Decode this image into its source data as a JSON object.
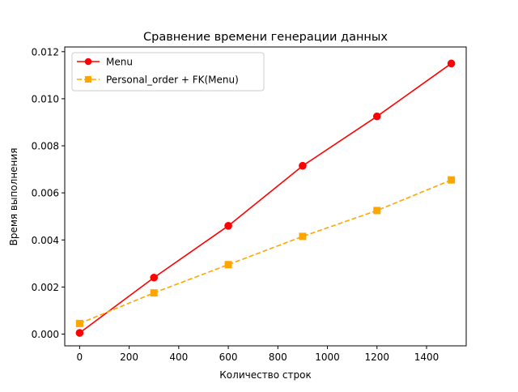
{
  "chart_data": {
    "type": "line",
    "title": "Сравнение времени генерации данных",
    "xlabel": "Количество строк",
    "ylabel": "Время выполнения",
    "xlim": [
      -60,
      1560
    ],
    "ylim": [
      -0.0005,
      0.0122
    ],
    "x_ticks": [
      0,
      200,
      400,
      600,
      800,
      1000,
      1200,
      1400
    ],
    "x_tick_labels": [
      "0",
      "200",
      "400",
      "600",
      "800",
      "1000",
      "1200",
      "1400"
    ],
    "y_ticks": [
      0.0,
      0.002,
      0.004,
      0.006,
      0.008,
      0.01,
      0.012
    ],
    "y_tick_labels": [
      "0.000",
      "0.002",
      "0.004",
      "0.006",
      "0.008",
      "0.010",
      "0.012"
    ],
    "grid": false,
    "legend_position": "top-left",
    "series": [
      {
        "name": "Menu",
        "color": "#ff0000",
        "line_style": "solid",
        "marker": "circle",
        "x": [
          0,
          300,
          600,
          900,
          1200,
          1500
        ],
        "values": [
          5e-05,
          0.0024,
          0.0046,
          0.00715,
          0.00925,
          0.0115
        ]
      },
      {
        "name": "Personal_order + FK(Menu)",
        "color": "#ffa500",
        "line_style": "dashed",
        "marker": "square",
        "x": [
          0,
          300,
          600,
          900,
          1200,
          1500
        ],
        "values": [
          0.00045,
          0.00175,
          0.00295,
          0.00415,
          0.00525,
          0.00655
        ]
      }
    ]
  }
}
